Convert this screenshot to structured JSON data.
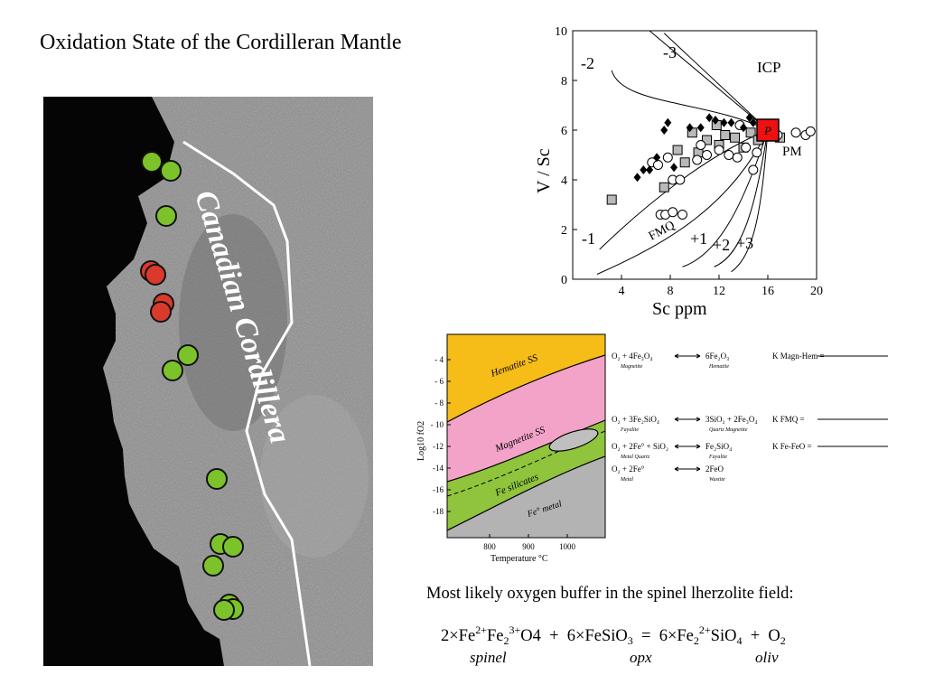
{
  "slide": {
    "title": "Oxidation State of the Cordilleran Mantle",
    "buffer_note": "Most likely oxygen buffer in the spinel lherzolite field:"
  },
  "map": {
    "label": "Canadian Cordillera",
    "colors": {
      "green_site": "#7cc22a",
      "red_site": "#d93a2b",
      "boundary": "#ffffff"
    }
  },
  "vsc_plot": {
    "type": "scatter",
    "ylabel": "V / Sc",
    "xlabel": "Sc ppm",
    "xlim": [
      0,
      20
    ],
    "ylim": [
      0,
      10
    ],
    "x_ticks": [
      "4",
      "8",
      "12",
      "16",
      "20"
    ],
    "y_ticks": [
      "0",
      "2",
      "4",
      "6",
      "8",
      "10"
    ],
    "labels": {
      "icp": "ICP",
      "pm_marker": "P",
      "pm": "PM",
      "fmq": "FMQ",
      "m3": "-3",
      "m2": "-2",
      "m1": "-1",
      "p1": "+1",
      "p2": "+2",
      "p3": "+3"
    },
    "pm_point": {
      "x": 16,
      "y": 6
    },
    "colors": {
      "pm": "#ee1111"
    }
  },
  "fo2_diagram": {
    "ylabel": "Log10 fO2",
    "xlabel": "Temperature °C",
    "x_ticks": [
      "800",
      "900",
      "1000"
    ],
    "y_ticks": [
      "- 4",
      "- 6",
      "- 8",
      "- 10",
      "-12",
      "-14",
      "-16",
      "-18"
    ],
    "fields": {
      "hematite": "Hematite SS",
      "magnetite": "Magnetite SS",
      "fe_silicates": "Fe silicates",
      "fe_metal": "Fe° metal"
    },
    "colors": {
      "hematite": "#f6bd18",
      "magnetite": "#f3a3c8",
      "silicates": "#8fc43c",
      "metal": "#b3b3b3"
    },
    "reactions": [
      {
        "lhs": "O₂ + 4Fe₃O₄",
        "lhs_sub": "Magnetite",
        "rhs": "6Fe₂O₃",
        "rhs_sub": "Hematite"
      },
      {
        "lhs": "O₂ + 3Fe₂SiO₄",
        "lhs_sub": "Fayalite",
        "rhs": "3SiO₂ + 2Fe₃O₄",
        "rhs_sub": "Quartz   Magnetite"
      },
      {
        "lhs": "O₂ + 2Fe° + SiO₂",
        "lhs_sub": "Metal   Quartz",
        "rhs": "Fe₂SiO₄",
        "rhs_sub": "Fayalite"
      },
      {
        "lhs": "O₂ + 2Fe°",
        "lhs_sub": "Metal",
        "rhs": "2FeO",
        "rhs_sub": "Wustite"
      }
    ],
    "constants": [
      "K Magn-Hem =",
      "K FMQ =",
      "K Fe-FeO ="
    ]
  },
  "equation": {
    "phases": [
      "spinel",
      "opx",
      "oliv"
    ]
  }
}
